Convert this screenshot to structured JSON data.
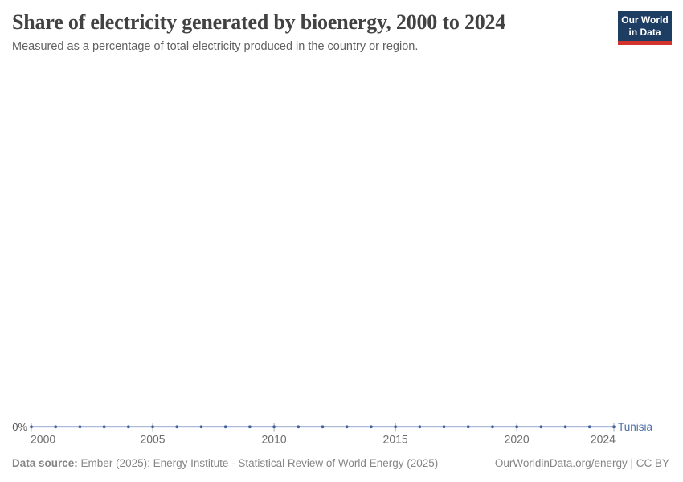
{
  "header": {
    "title": "Share of electricity generated by bioenergy, 2000 to 2024",
    "subtitle": "Measured as a percentage of total electricity produced in the country or region."
  },
  "logo": {
    "line1": "Our World",
    "line2": "in Data",
    "bg_color": "#1d3d63",
    "bar_color": "#d0342c"
  },
  "chart_data": {
    "type": "line",
    "title": "Share of electricity generated by bioenergy, 2000 to 2024",
    "xlabel": "",
    "ylabel": "",
    "unit": "%",
    "xlim": [
      2000,
      2024
    ],
    "grid": false,
    "legend": "end-of-line-label",
    "x": [
      2000,
      2001,
      2002,
      2003,
      2004,
      2005,
      2006,
      2007,
      2008,
      2009,
      2010,
      2011,
      2012,
      2013,
      2014,
      2015,
      2016,
      2017,
      2018,
      2019,
      2020,
      2021,
      2022,
      2023,
      2024
    ],
    "series": [
      {
        "name": "Tunisia",
        "values": [
          0,
          0,
          0,
          0,
          0,
          0,
          0,
          0,
          0,
          0,
          0,
          0,
          0,
          0,
          0,
          0,
          0,
          0,
          0,
          0,
          0,
          0,
          0,
          0,
          0
        ],
        "line_color": "#5b77b1",
        "dot_color": "#41619e",
        "label_color": "#4c6fa5"
      }
    ],
    "x_tick_labels": [
      "2000",
      "2005",
      "2010",
      "2015",
      "2020",
      "2024"
    ],
    "y_tick_labels": [
      "0%"
    ],
    "tick_color": "#a6a6a6",
    "axis_text_color": "#6e6e6e"
  },
  "footer": {
    "data_source_label": "Data source:",
    "data_source_text": "Ember (2025); Energy Institute - Statistical Review of World Energy (2025)",
    "credit": "OurWorldinData.org/energy | CC BY"
  }
}
